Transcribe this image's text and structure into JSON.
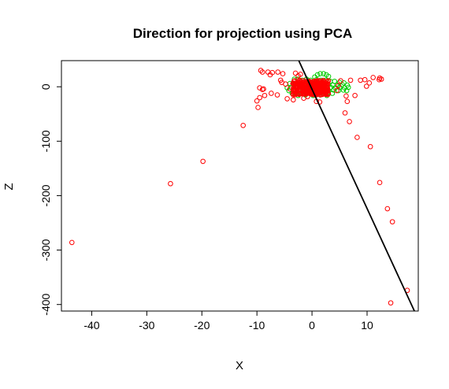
{
  "chart_data": {
    "type": "scatter",
    "title": "Direction for projection using PCA",
    "xlabel": "X",
    "ylabel": "Z",
    "xlim": [
      -45.5,
      19.3
    ],
    "ylim": [
      -412,
      48
    ],
    "x_ticks": [
      -40,
      -30,
      -20,
      -10,
      0,
      10
    ],
    "y_ticks": [
      -400,
      -300,
      -200,
      -100,
      0
    ],
    "x_tick_labels": [
      "-40",
      "-30",
      "-20",
      "-10",
      "0",
      "10"
    ],
    "y_tick_labels": [
      "-400",
      "-300",
      "-200",
      "-100",
      "0"
    ],
    "grid": false,
    "legend": "none",
    "line": {
      "x": [
        -2.4,
        18.6
      ],
      "y": [
        48,
        -412
      ],
      "color": "#000000"
    },
    "series": [
      {
        "color": "#00cc00",
        "points": [
          [
            1.5,
            24
          ],
          [
            2.1,
            24
          ],
          [
            1.0,
            22
          ],
          [
            2.6,
            22
          ],
          [
            3.0,
            19
          ],
          [
            0.5,
            18
          ],
          [
            -3.2,
            14
          ],
          [
            -2.6,
            14
          ],
          [
            -1.8,
            12
          ],
          [
            -1.0,
            14
          ],
          [
            -0.3,
            12
          ],
          [
            0.8,
            13
          ],
          [
            1.6,
            12
          ],
          [
            2.5,
            12
          ],
          [
            3.3,
            10
          ],
          [
            4.1,
            10
          ],
          [
            5.0,
            8
          ],
          [
            5.8,
            7
          ],
          [
            -4.0,
            6
          ],
          [
            -3.4,
            4
          ],
          [
            -2.8,
            6
          ],
          [
            -1.5,
            5
          ],
          [
            -0.6,
            6
          ],
          [
            0.6,
            6
          ],
          [
            1.4,
            4
          ],
          [
            2.2,
            5
          ],
          [
            3.0,
            4
          ],
          [
            3.8,
            3
          ],
          [
            4.6,
            3
          ],
          [
            5.5,
            4
          ],
          [
            6.4,
            3
          ],
          [
            -4.5,
            -2
          ],
          [
            -3.8,
            -1
          ],
          [
            -3.0,
            -2
          ],
          [
            -2.2,
            -1
          ],
          [
            -1.2,
            -2
          ],
          [
            0.2,
            -1
          ],
          [
            1.0,
            -2
          ],
          [
            1.8,
            -1
          ],
          [
            2.6,
            -2
          ],
          [
            3.4,
            -1
          ],
          [
            4.2,
            -2
          ],
          [
            5.0,
            -1
          ],
          [
            5.9,
            -2
          ],
          [
            6.6,
            -1
          ],
          [
            -4.2,
            -7
          ],
          [
            -3.3,
            -6
          ],
          [
            -2.5,
            -7
          ],
          [
            -1.6,
            -6
          ],
          [
            -0.8,
            -7
          ],
          [
            0.4,
            -6
          ],
          [
            1.3,
            -7
          ],
          [
            2.1,
            -6
          ],
          [
            3.0,
            -7
          ],
          [
            3.9,
            -6
          ],
          [
            4.8,
            -7
          ],
          [
            5.7,
            -6
          ],
          [
            6.3,
            -7
          ],
          [
            -3.6,
            -12
          ],
          [
            -2.8,
            -11
          ],
          [
            -2.0,
            -12
          ],
          [
            -1.0,
            -11
          ],
          [
            0.0,
            -12
          ],
          [
            1.1,
            -11
          ],
          [
            2.0,
            -12
          ],
          [
            2.9,
            -11
          ],
          [
            3.7,
            -12
          ],
          [
            -2.5,
            -16
          ],
          [
            -1.2,
            -15
          ],
          [
            0.2,
            -16
          ],
          [
            1.5,
            -15
          ],
          [
            2.7,
            -16
          ]
        ]
      },
      {
        "color": "#ff0000",
        "points": [
          [
            -43.6,
            -286
          ],
          [
            -25.7,
            -178
          ],
          [
            -19.8,
            -137
          ],
          [
            -12.5,
            -71
          ],
          [
            -9.8,
            -38
          ],
          [
            -10.0,
            -26
          ],
          [
            -9.5,
            -20
          ],
          [
            -8.6,
            -16
          ],
          [
            -7.4,
            -12
          ],
          [
            -9.5,
            -2
          ],
          [
            -9.0,
            -5
          ],
          [
            -8.8,
            -4
          ],
          [
            -9.3,
            30
          ],
          [
            -9.0,
            27
          ],
          [
            -8.0,
            27
          ],
          [
            -7.6,
            22
          ],
          [
            -7.2,
            26
          ],
          [
            -6.2,
            27
          ],
          [
            -5.3,
            24
          ],
          [
            -5.7,
            12
          ],
          [
            -5.5,
            8
          ],
          [
            -4.8,
            5
          ],
          [
            -6.3,
            -15
          ],
          [
            -4.5,
            -22
          ],
          [
            -4.0,
            -4
          ],
          [
            -3.4,
            -24
          ],
          [
            -3.0,
            25
          ],
          [
            -2.5,
            20
          ],
          [
            -2.1,
            23
          ],
          [
            -1.5,
            -21
          ],
          [
            -0.8,
            -18
          ],
          [
            0.8,
            -27
          ],
          [
            1.4,
            -28
          ],
          [
            0.5,
            8
          ],
          [
            1.3,
            2
          ],
          [
            1.8,
            6
          ],
          [
            0.8,
            -8
          ],
          [
            4.5,
            -7
          ],
          [
            4.8,
            2
          ],
          [
            5.2,
            11
          ],
          [
            6.2,
            -17
          ],
          [
            6.4,
            -27
          ],
          [
            7.0,
            12
          ],
          [
            7.8,
            -16
          ],
          [
            8.8,
            12
          ],
          [
            9.6,
            13
          ],
          [
            9.9,
            1
          ],
          [
            10.4,
            7
          ],
          [
            11.1,
            17
          ],
          [
            12.2,
            13
          ],
          [
            12.3,
            16
          ],
          [
            12.6,
            14
          ],
          [
            6.0,
            -48
          ],
          [
            6.8,
            -64
          ],
          [
            8.2,
            -93
          ],
          [
            10.6,
            -110
          ],
          [
            12.3,
            -176
          ],
          [
            13.7,
            -224
          ],
          [
            14.6,
            -248
          ],
          [
            17.3,
            -374
          ],
          [
            14.3,
            -397
          ]
        ],
        "cluster": {
          "x_range": [
            -3.5,
            3.0
          ],
          "y_range": [
            -15,
            12
          ]
        }
      }
    ]
  }
}
